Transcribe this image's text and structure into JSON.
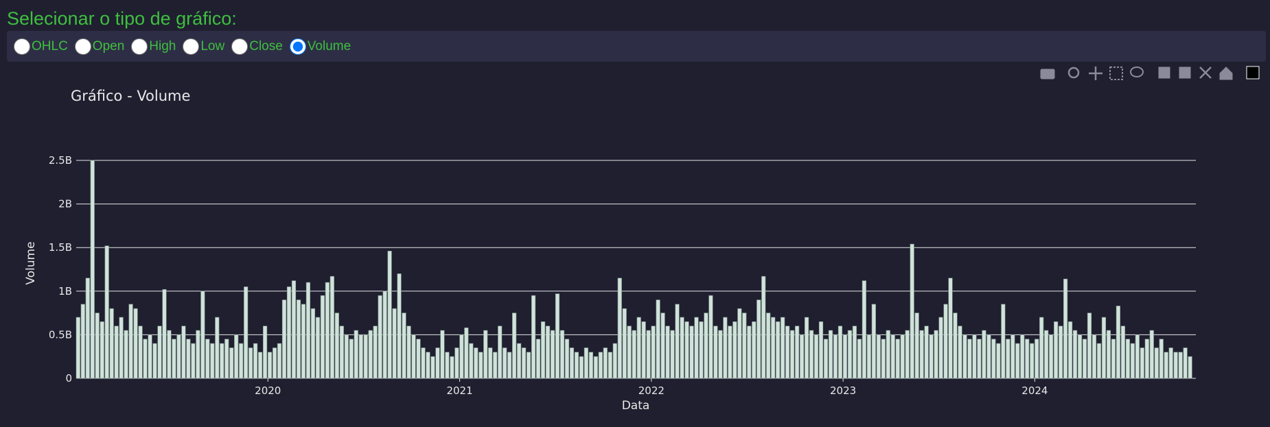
{
  "selector": {
    "title": "Selecionar o tipo de gráfico:",
    "options": [
      "OHLC",
      "Open",
      "High",
      "Low",
      "Close",
      "Volume"
    ],
    "selected_index": 5
  },
  "chart_data": {
    "type": "bar",
    "title": "Gráfico - Volume",
    "x_label": "Data",
    "y_label": "Volume",
    "color": "#cfe3da",
    "grid": true,
    "xlim": [
      2019.0,
      2024.84
    ],
    "xticks": [
      2020,
      2021,
      2022,
      2023,
      2024
    ],
    "ylim": [
      0,
      2.5
    ],
    "yticks": [
      0,
      {
        "value": 0.5,
        "label": "0.5B"
      },
      {
        "value": 1,
        "label": "1B"
      },
      {
        "value": 1.5,
        "label": "1.5B"
      },
      {
        "value": 2,
        "label": "2B"
      },
      {
        "value": 2.5,
        "label": "2.5B"
      }
    ],
    "x": [
      2019.01,
      2019.035,
      2019.06,
      2019.085,
      2019.11,
      2019.135,
      2019.16,
      2019.185,
      2019.21,
      2019.235,
      2019.26,
      2019.285,
      2019.31,
      2019.335,
      2019.36,
      2019.385,
      2019.41,
      2019.435,
      2019.46,
      2019.485,
      2019.51,
      2019.535,
      2019.56,
      2019.585,
      2019.61,
      2019.635,
      2019.66,
      2019.685,
      2019.71,
      2019.735,
      2019.76,
      2019.785,
      2019.81,
      2019.835,
      2019.86,
      2019.885,
      2019.91,
      2019.935,
      2019.96,
      2019.985,
      2020.01,
      2020.035,
      2020.06,
      2020.085,
      2020.11,
      2020.135,
      2020.16,
      2020.185,
      2020.21,
      2020.235,
      2020.26,
      2020.285,
      2020.31,
      2020.335,
      2020.36,
      2020.385,
      2020.41,
      2020.435,
      2020.46,
      2020.485,
      2020.51,
      2020.535,
      2020.56,
      2020.585,
      2020.61,
      2020.635,
      2020.66,
      2020.685,
      2020.71,
      2020.735,
      2020.76,
      2020.785,
      2020.81,
      2020.835,
      2020.86,
      2020.885,
      2020.91,
      2020.935,
      2020.96,
      2020.985,
      2021.01,
      2021.035,
      2021.06,
      2021.085,
      2021.11,
      2021.135,
      2021.16,
      2021.185,
      2021.21,
      2021.235,
      2021.26,
      2021.285,
      2021.31,
      2021.335,
      2021.36,
      2021.385,
      2021.41,
      2021.435,
      2021.46,
      2021.485,
      2021.51,
      2021.535,
      2021.56,
      2021.585,
      2021.61,
      2021.635,
      2021.66,
      2021.685,
      2021.71,
      2021.735,
      2021.76,
      2021.785,
      2021.81,
      2021.835,
      2021.86,
      2021.885,
      2021.91,
      2021.935,
      2021.96,
      2021.985,
      2022.01,
      2022.035,
      2022.06,
      2022.085,
      2022.11,
      2022.135,
      2022.16,
      2022.185,
      2022.21,
      2022.235,
      2022.26,
      2022.285,
      2022.31,
      2022.335,
      2022.36,
      2022.385,
      2022.41,
      2022.435,
      2022.46,
      2022.485,
      2022.51,
      2022.535,
      2022.56,
      2022.585,
      2022.61,
      2022.635,
      2022.66,
      2022.685,
      2022.71,
      2022.735,
      2022.76,
      2022.785,
      2022.81,
      2022.835,
      2022.86,
      2022.885,
      2022.91,
      2022.935,
      2022.96,
      2022.985,
      2023.01,
      2023.035,
      2023.06,
      2023.085,
      2023.11,
      2023.135,
      2023.16,
      2023.185,
      2023.21,
      2023.235,
      2023.26,
      2023.285,
      2023.31,
      2023.335,
      2023.36,
      2023.385,
      2023.41,
      2023.435,
      2023.46,
      2023.485,
      2023.51,
      2023.535,
      2023.56,
      2023.585,
      2023.61,
      2023.635,
      2023.66,
      2023.685,
      2023.71,
      2023.735,
      2023.76,
      2023.785,
      2023.81,
      2023.835,
      2023.86,
      2023.885,
      2023.91,
      2023.935,
      2023.96,
      2023.985,
      2024.01,
      2024.035,
      2024.06,
      2024.085,
      2024.11,
      2024.135,
      2024.16,
      2024.185,
      2024.21,
      2024.235,
      2024.26,
      2024.285,
      2024.31,
      2024.335,
      2024.36,
      2024.385,
      2024.41,
      2024.435,
      2024.46,
      2024.485,
      2024.51,
      2024.535,
      2024.56,
      2024.585,
      2024.61,
      2024.635,
      2024.66,
      2024.685,
      2024.71,
      2024.735,
      2024.76,
      2024.785,
      2024.81
    ],
    "values": [
      0.7,
      0.85,
      1.15,
      2.5,
      0.75,
      0.65,
      1.52,
      0.8,
      0.6,
      0.7,
      0.55,
      0.85,
      0.8,
      0.6,
      0.45,
      0.5,
      0.4,
      0.6,
      1.02,
      0.55,
      0.45,
      0.5,
      0.6,
      0.45,
      0.4,
      0.55,
      1.0,
      0.45,
      0.4,
      0.7,
      0.4,
      0.45,
      0.35,
      0.5,
      0.4,
      1.05,
      0.35,
      0.4,
      0.3,
      0.6,
      0.3,
      0.35,
      0.4,
      0.9,
      1.05,
      1.12,
      0.9,
      0.85,
      1.1,
      0.8,
      0.7,
      0.95,
      1.1,
      1.17,
      0.75,
      0.6,
      0.5,
      0.45,
      0.55,
      0.5,
      0.5,
      0.55,
      0.6,
      0.95,
      1.0,
      1.46,
      0.8,
      1.2,
      0.75,
      0.6,
      0.5,
      0.45,
      0.35,
      0.3,
      0.25,
      0.35,
      0.55,
      0.3,
      0.25,
      0.35,
      0.5,
      0.58,
      0.4,
      0.35,
      0.3,
      0.55,
      0.35,
      0.3,
      0.6,
      0.35,
      0.3,
      0.75,
      0.4,
      0.35,
      0.3,
      0.95,
      0.45,
      0.65,
      0.6,
      0.55,
      0.97,
      0.55,
      0.45,
      0.35,
      0.3,
      0.25,
      0.35,
      0.3,
      0.25,
      0.3,
      0.35,
      0.3,
      0.4,
      1.15,
      0.8,
      0.6,
      0.55,
      0.7,
      0.65,
      0.55,
      0.6,
      0.9,
      0.75,
      0.6,
      0.55,
      0.85,
      0.7,
      0.65,
      0.6,
      0.7,
      0.65,
      0.75,
      0.95,
      0.6,
      0.55,
      0.7,
      0.6,
      0.65,
      0.8,
      0.75,
      0.6,
      0.65,
      0.9,
      1.17,
      0.75,
      0.7,
      0.65,
      0.7,
      0.6,
      0.55,
      0.6,
      0.5,
      0.7,
      0.55,
      0.5,
      0.65,
      0.45,
      0.55,
      0.5,
      0.6,
      0.5,
      0.55,
      0.6,
      0.45,
      1.12,
      0.5,
      0.85,
      0.5,
      0.45,
      0.55,
      0.5,
      0.45,
      0.5,
      0.55,
      1.54,
      0.75,
      0.55,
      0.6,
      0.5,
      0.55,
      0.7,
      0.85,
      1.15,
      0.75,
      0.6,
      0.5,
      0.45,
      0.5,
      0.45,
      0.55,
      0.5,
      0.45,
      0.4,
      0.85,
      0.45,
      0.5,
      0.4,
      0.5,
      0.45,
      0.4,
      0.45,
      0.7,
      0.55,
      0.5,
      0.65,
      0.6,
      1.14,
      0.65,
      0.55,
      0.5,
      0.45,
      0.75,
      0.5,
      0.4,
      0.7,
      0.55,
      0.45,
      0.83,
      0.6,
      0.45,
      0.4,
      0.5,
      0.35,
      0.45,
      0.55,
      0.35,
      0.45,
      0.3,
      0.35,
      0.3,
      0.3,
      0.35,
      0.25
    ]
  }
}
